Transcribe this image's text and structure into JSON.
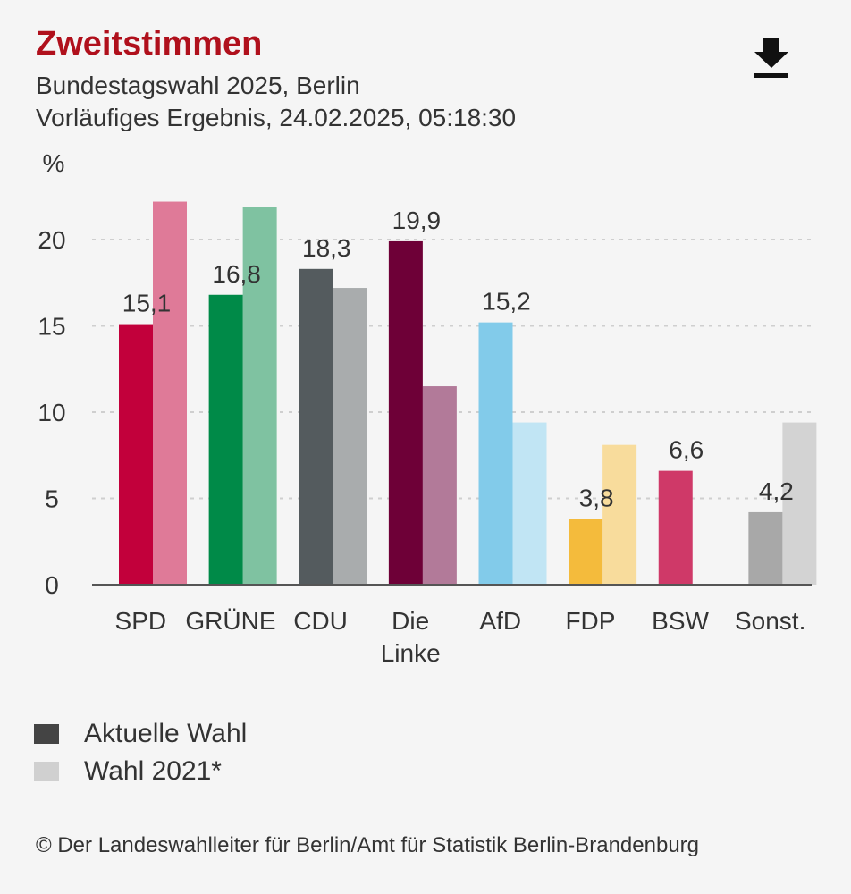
{
  "header": {
    "title": "Zweitstimmen",
    "subtitle_1": "Bundestagswahl 2025, Berlin",
    "subtitle_2": "Vorläufiges Ergebnis, 24.02.2025, 05:18:30",
    "download_icon": "download-icon"
  },
  "legend": {
    "items": [
      {
        "label": "Aktuelle Wahl",
        "color": "#444444"
      },
      {
        "label": "Wahl 2021*",
        "color": "#d0d0d0"
      }
    ]
  },
  "footer": {
    "copyright": "© Der Landeswahlleiter für Berlin/Amt für Statistik Berlin-Brandenburg"
  },
  "chart_data": {
    "type": "bar",
    "title": "Zweitstimmen",
    "ylabel": "%",
    "ylim": [
      0,
      22
    ],
    "yticks": [
      0,
      5,
      10,
      15,
      20
    ],
    "grid": true,
    "categories": [
      "SPD",
      "GRÜNE",
      "CDU",
      "Die Linke",
      "AfD",
      "FDP",
      "BSW",
      "Sonst."
    ],
    "category_lines": [
      [
        "SPD"
      ],
      [
        "GRÜNE"
      ],
      [
        "CDU"
      ],
      [
        "Die",
        "Linke"
      ],
      [
        "AfD"
      ],
      [
        "FDP"
      ],
      [
        "BSW"
      ],
      [
        "Sonst."
      ]
    ],
    "series": [
      {
        "name": "Aktuelle Wahl",
        "values": [
          15.1,
          16.8,
          18.3,
          19.9,
          15.2,
          3.8,
          6.6,
          4.2
        ],
        "labels": [
          "15,1",
          "16,8",
          "18,3",
          "19,9",
          "15,2",
          "3,8",
          "6,6",
          "4,2"
        ],
        "colors": [
          "#c2003b",
          "#008a48",
          "#545b5e",
          "#6e0037",
          "#82cbea",
          "#f4bb3c",
          "#cf3968",
          "#a8a8a8"
        ]
      },
      {
        "name": "Wahl 2021*",
        "values": [
          22.2,
          21.9,
          17.2,
          11.5,
          9.4,
          8.1,
          null,
          9.4
        ],
        "colors": [
          "#df7a98",
          "#7fc2a1",
          "#a9acad",
          "#b27a99",
          "#c1e5f4",
          "#f8dc9c",
          "#e69cb2",
          "#d3d3d3"
        ]
      }
    ]
  }
}
